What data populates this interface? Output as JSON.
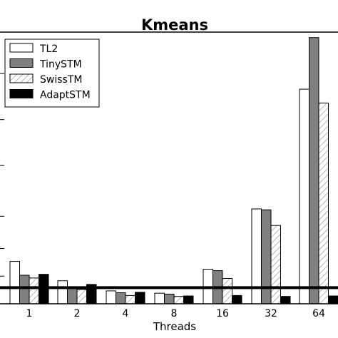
{
  "chart_data": {
    "type": "bar",
    "title": "Kmeans",
    "xlabel": "Threads",
    "ylabel": "",
    "categories": [
      "1",
      "2",
      "4",
      "8",
      "16",
      "32",
      "64"
    ],
    "series": [
      {
        "name": "TL2",
        "fill": "#ffffff",
        "pattern": "none",
        "values": [
          0.92,
          0.5,
          0.28,
          0.23,
          0.75,
          2.06,
          4.66
        ]
      },
      {
        "name": "TinySTM",
        "fill": "#808080",
        "pattern": "none",
        "values": [
          0.62,
          0.34,
          0.24,
          0.21,
          0.72,
          2.04,
          5.78
        ]
      },
      {
        "name": "SwissTM",
        "fill": "#ffffff",
        "pattern": "diagonal-hatch",
        "values": [
          0.56,
          0.31,
          0.18,
          0.16,
          0.55,
          1.7,
          4.36
        ]
      },
      {
        "name": "AdaptSTM",
        "fill": "#000000",
        "pattern": "none",
        "values": [
          0.64,
          0.42,
          0.25,
          0.17,
          0.18,
          0.16,
          0.17
        ]
      }
    ],
    "reference_line": {
      "y": 0.35,
      "color": "#000000"
    },
    "ylim": [
      0,
      5.9
    ],
    "grid": false,
    "legend_position": "top-left"
  }
}
